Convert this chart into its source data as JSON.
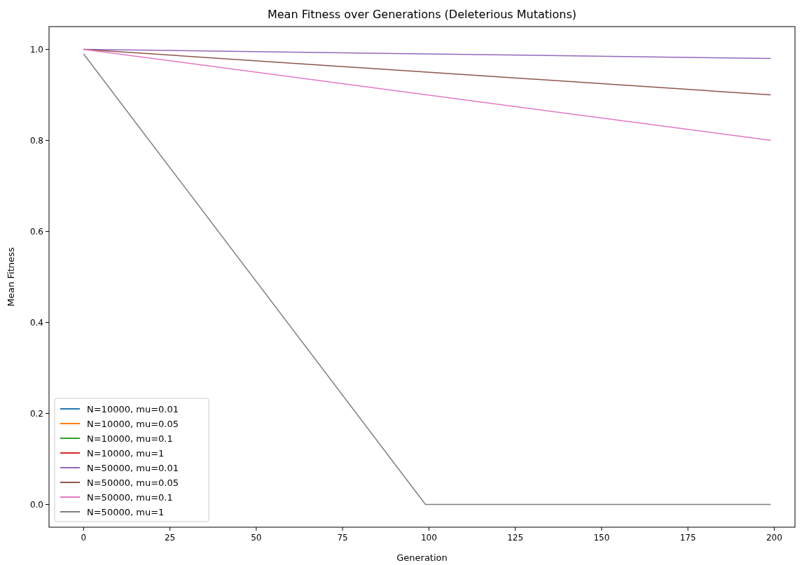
{
  "chart_data": {
    "type": "line",
    "title": "Mean Fitness over Generations (Deleterious Mutations)",
    "xlabel": "Generation",
    "ylabel": "Mean Fitness",
    "xlim": [
      -10,
      206
    ],
    "xticks": [
      0,
      25,
      50,
      75,
      100,
      125,
      150,
      175,
      200
    ],
    "ylim": [
      -0.05,
      1.05
    ],
    "yticks": [
      {
        "value": 0,
        "label": "0.0"
      },
      {
        "value": 0.2,
        "label": "0.2"
      },
      {
        "value": 0.4,
        "label": "0.4"
      },
      {
        "value": 0.6,
        "label": "0.6"
      },
      {
        "value": 0.8,
        "label": "0.8"
      },
      {
        "value": 1,
        "label": "1.0"
      }
    ],
    "grid": false,
    "legend": "bottom left",
    "marker": "none",
    "line_style": "solid",
    "series": [
      {
        "name": "N=10000, mu=0.01",
        "color": "#1f77b4"
      },
      {
        "name": "N=10000, mu=0.05",
        "color": "#ff7f0e"
      },
      {
        "name": "N=10000, mu=0.1",
        "color": "#2ca02c"
      },
      {
        "name": "N=10000, mu=1",
        "color": "#d62728"
      },
      {
        "name": "N=50000, mu=0.01",
        "color": "#9467bd",
        "x": [
          0,
          199
        ],
        "values": [
          1.0,
          0.98
        ]
      },
      {
        "name": "N=50000, mu=0.05",
        "color": "#8c564b",
        "x": [
          0,
          199
        ],
        "values": [
          1.0,
          0.9
        ]
      },
      {
        "name": "N=50000, mu=0.1",
        "color": "#e377c2",
        "x": [
          0,
          199
        ],
        "values": [
          1.0,
          0.8
        ]
      },
      {
        "name": "N=50000, mu=1",
        "color": "#7f7f7f",
        "x": [
          0,
          99,
          199
        ],
        "values": [
          0.99,
          0,
          0
        ]
      }
    ]
  }
}
